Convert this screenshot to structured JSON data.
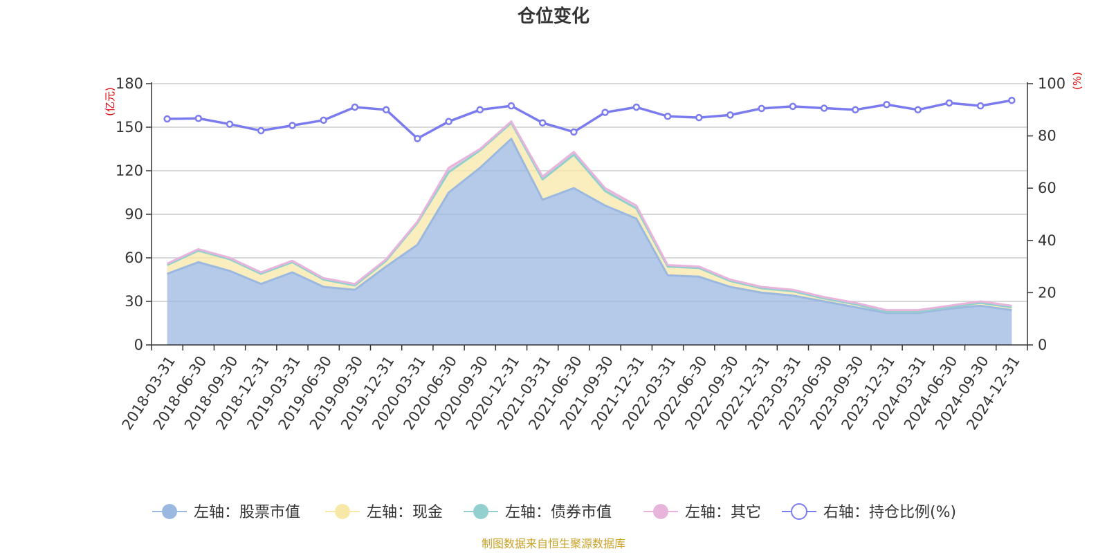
{
  "chart_data": {
    "type": "area",
    "title": "仓位变化",
    "left_axis_unit": "(亿元)",
    "right_axis_unit": "(%)",
    "source_note": "制图数据来自恒生聚源数据库",
    "categories": [
      "2018-03-31",
      "2018-06-30",
      "2018-09-30",
      "2018-12-31",
      "2019-03-31",
      "2019-06-30",
      "2019-09-30",
      "2019-12-31",
      "2020-03-31",
      "2020-06-30",
      "2020-09-30",
      "2020-12-31",
      "2021-03-31",
      "2021-06-30",
      "2021-09-30",
      "2021-12-31",
      "2022-03-31",
      "2022-06-30",
      "2022-09-30",
      "2022-12-31",
      "2023-03-31",
      "2023-06-30",
      "2023-09-30",
      "2023-12-31",
      "2024-03-31",
      "2024-06-30",
      "2024-09-30",
      "2024-12-31"
    ],
    "left_axis": {
      "min": 0,
      "max": 180,
      "ticks": [
        0,
        30,
        60,
        90,
        120,
        150,
        180
      ]
    },
    "right_axis": {
      "min": 0,
      "max": 100,
      "ticks": [
        0,
        20,
        40,
        60,
        80,
        100
      ]
    },
    "series": [
      {
        "name": "左轴：股票市值",
        "axis": "left",
        "color": "#9bb8e0",
        "values": [
          49,
          57,
          51,
          42,
          50,
          40,
          38,
          54,
          69,
          105,
          122,
          142,
          100,
          108,
          96,
          87,
          48,
          47,
          40,
          36,
          34,
          30,
          26,
          22,
          22,
          25,
          27,
          24
        ]
      },
      {
        "name": "左轴：现金",
        "axis": "left",
        "color": "#f8e8a8",
        "values": [
          6,
          8,
          8,
          7,
          7,
          5,
          3,
          4,
          15,
          14,
          12,
          11,
          14,
          23,
          10,
          7,
          6,
          6,
          4,
          3,
          3,
          2,
          2,
          1,
          1,
          1,
          2,
          2
        ]
      },
      {
        "name": "左轴：债券市值",
        "axis": "left",
        "color": "#91d0cf",
        "values": [
          0,
          0,
          0,
          0,
          0,
          0,
          0,
          0,
          0,
          0,
          0,
          0,
          0,
          0,
          0,
          0,
          0,
          0,
          0,
          0,
          0,
          0,
          0,
          0,
          0,
          0,
          0,
          0
        ]
      },
      {
        "name": "左轴：其它",
        "axis": "left",
        "color": "#e8b4dc",
        "values": [
          1,
          1,
          1,
          1,
          1,
          1,
          1,
          1,
          1,
          3,
          1,
          1,
          2,
          2,
          2,
          2,
          1,
          1,
          1,
          1,
          1,
          1,
          1,
          1,
          1,
          1,
          1,
          1
        ]
      },
      {
        "name": "右轴：持仓比例(%)",
        "axis": "right",
        "color": "#7b7bf0",
        "values": [
          86.5,
          86.7,
          84.5,
          82.0,
          84.0,
          86.0,
          91.0,
          90.0,
          79.0,
          85.5,
          90.0,
          91.5,
          85.0,
          81.5,
          89.0,
          91.0,
          87.5,
          87.0,
          88.0,
          90.5,
          91.3,
          90.6,
          90.0,
          92.0,
          90.0,
          92.6,
          91.5,
          93.6
        ]
      }
    ]
  }
}
